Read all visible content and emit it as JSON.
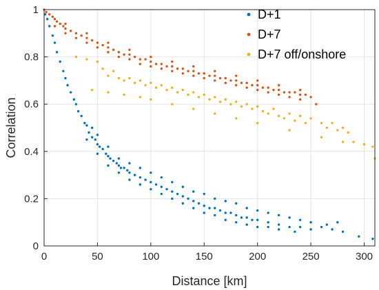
{
  "chart_data": {
    "type": "scatter",
    "title": "",
    "xlabel": "Distance [km]",
    "ylabel": "Correlation",
    "xlim": [
      0,
      310
    ],
    "ylim": [
      0,
      1
    ],
    "xticks": [
      0,
      50,
      100,
      150,
      200,
      250,
      300
    ],
    "xtick_labels": [
      "0",
      "50",
      "100",
      "150",
      "200",
      "250",
      "300"
    ],
    "yticks": [
      0,
      0.2,
      0.4,
      0.6,
      0.8,
      1
    ],
    "ytick_labels": [
      "0",
      "0.2",
      "0.4",
      "0.6",
      "0.8",
      "1"
    ],
    "grid": true,
    "legend": "top-right",
    "series": [
      {
        "name": "D+1",
        "color": "#0072bd",
        "points": [
          [
            1,
            0.98
          ],
          [
            3,
            0.96
          ],
          [
            5,
            0.93
          ],
          [
            8,
            0.89
          ],
          [
            10,
            0.86
          ],
          [
            12,
            0.82
          ],
          [
            15,
            0.78
          ],
          [
            18,
            0.74
          ],
          [
            20,
            0.71
          ],
          [
            22,
            0.68
          ],
          [
            25,
            0.65
          ],
          [
            28,
            0.62
          ],
          [
            30,
            0.6
          ],
          [
            32,
            0.57
          ],
          [
            35,
            0.55
          ],
          [
            38,
            0.52
          ],
          [
            40,
            0.51
          ],
          [
            42,
            0.48
          ],
          [
            45,
            0.46
          ],
          [
            48,
            0.45
          ],
          [
            50,
            0.43
          ],
          [
            52,
            0.42
          ],
          [
            55,
            0.41
          ],
          [
            58,
            0.39
          ],
          [
            60,
            0.38
          ],
          [
            62,
            0.37
          ],
          [
            65,
            0.36
          ],
          [
            68,
            0.35
          ],
          [
            70,
            0.34
          ],
          [
            72,
            0.33
          ],
          [
            75,
            0.33
          ],
          [
            78,
            0.32
          ],
          [
            80,
            0.31
          ],
          [
            85,
            0.3
          ],
          [
            90,
            0.29
          ],
          [
            95,
            0.28
          ],
          [
            100,
            0.27
          ],
          [
            105,
            0.26
          ],
          [
            110,
            0.25
          ],
          [
            115,
            0.24
          ],
          [
            120,
            0.23
          ],
          [
            125,
            0.22
          ],
          [
            130,
            0.21
          ],
          [
            135,
            0.2
          ],
          [
            140,
            0.19
          ],
          [
            145,
            0.18
          ],
          [
            150,
            0.17
          ],
          [
            155,
            0.16
          ],
          [
            160,
            0.16
          ],
          [
            165,
            0.15
          ],
          [
            170,
            0.14
          ],
          [
            175,
            0.14
          ],
          [
            180,
            0.13
          ],
          [
            185,
            0.12
          ],
          [
            190,
            0.12
          ],
          [
            195,
            0.11
          ],
          [
            200,
            0.11
          ],
          [
            210,
            0.1
          ],
          [
            220,
            0.09
          ],
          [
            230,
            0.08
          ],
          [
            240,
            0.08
          ],
          [
            250,
            0.07
          ],
          [
            260,
            0.08
          ],
          [
            270,
            0.07
          ],
          [
            280,
            0.06
          ],
          [
            295,
            0.04
          ],
          [
            308,
            0.03
          ],
          [
            45,
            0.5
          ],
          [
            50,
            0.47
          ],
          [
            60,
            0.42
          ],
          [
            70,
            0.37
          ],
          [
            80,
            0.35
          ],
          [
            90,
            0.33
          ],
          [
            100,
            0.31
          ],
          [
            110,
            0.29
          ],
          [
            120,
            0.27
          ],
          [
            130,
            0.25
          ],
          [
            140,
            0.23
          ],
          [
            150,
            0.22
          ],
          [
            160,
            0.2
          ],
          [
            170,
            0.19
          ],
          [
            180,
            0.18
          ],
          [
            190,
            0.16
          ],
          [
            200,
            0.15
          ],
          [
            210,
            0.14
          ],
          [
            220,
            0.13
          ],
          [
            230,
            0.12
          ],
          [
            240,
            0.11
          ],
          [
            250,
            0.1
          ],
          [
            265,
            0.09
          ],
          [
            275,
            0.1
          ],
          [
            40,
            0.45
          ],
          [
            50,
            0.39
          ],
          [
            60,
            0.34
          ],
          [
            70,
            0.31
          ],
          [
            80,
            0.28
          ],
          [
            90,
            0.26
          ],
          [
            100,
            0.24
          ],
          [
            110,
            0.22
          ],
          [
            120,
            0.2
          ],
          [
            130,
            0.18
          ],
          [
            140,
            0.16
          ],
          [
            150,
            0.14
          ],
          [
            160,
            0.13
          ],
          [
            170,
            0.11
          ],
          [
            180,
            0.1
          ],
          [
            190,
            0.09
          ],
          [
            200,
            0.08
          ],
          [
            210,
            0.08
          ],
          [
            220,
            0.07
          ],
          [
            235,
            0.06
          ]
        ]
      },
      {
        "name": "D+7",
        "color": "#d95319",
        "points": [
          [
            0,
            1
          ],
          [
            2,
            0.99
          ],
          [
            5,
            0.98
          ],
          [
            8,
            0.97
          ],
          [
            10,
            0.96
          ],
          [
            12,
            0.95
          ],
          [
            15,
            0.94
          ],
          [
            18,
            0.93
          ],
          [
            20,
            0.92
          ],
          [
            25,
            0.91
          ],
          [
            30,
            0.9
          ],
          [
            35,
            0.89
          ],
          [
            40,
            0.88
          ],
          [
            45,
            0.87
          ],
          [
            50,
            0.86
          ],
          [
            55,
            0.85
          ],
          [
            60,
            0.84
          ],
          [
            65,
            0.83
          ],
          [
            70,
            0.82
          ],
          [
            75,
            0.81
          ],
          [
            80,
            0.81
          ],
          [
            85,
            0.8
          ],
          [
            90,
            0.79
          ],
          [
            95,
            0.79
          ],
          [
            100,
            0.78
          ],
          [
            105,
            0.77
          ],
          [
            110,
            0.77
          ],
          [
            115,
            0.76
          ],
          [
            120,
            0.76
          ],
          [
            125,
            0.75
          ],
          [
            130,
            0.75
          ],
          [
            135,
            0.74
          ],
          [
            140,
            0.74
          ],
          [
            145,
            0.73
          ],
          [
            150,
            0.73
          ],
          [
            155,
            0.72
          ],
          [
            160,
            0.72
          ],
          [
            165,
            0.71
          ],
          [
            170,
            0.71
          ],
          [
            175,
            0.7
          ],
          [
            180,
            0.7
          ],
          [
            185,
            0.69
          ],
          [
            190,
            0.69
          ],
          [
            195,
            0.68
          ],
          [
            200,
            0.68
          ],
          [
            205,
            0.67
          ],
          [
            210,
            0.67
          ],
          [
            215,
            0.66
          ],
          [
            220,
            0.66
          ],
          [
            225,
            0.65
          ],
          [
            230,
            0.65
          ],
          [
            235,
            0.65
          ],
          [
            240,
            0.64
          ],
          [
            245,
            0.64
          ],
          [
            250,
            0.63
          ],
          [
            255,
            0.6
          ],
          [
            10,
            0.93
          ],
          [
            20,
            0.9
          ],
          [
            30,
            0.88
          ],
          [
            40,
            0.86
          ],
          [
            50,
            0.84
          ],
          [
            60,
            0.82
          ],
          [
            70,
            0.8
          ],
          [
            80,
            0.79
          ],
          [
            90,
            0.77
          ],
          [
            100,
            0.76
          ],
          [
            110,
            0.75
          ],
          [
            120,
            0.74
          ],
          [
            130,
            0.73
          ],
          [
            140,
            0.72
          ],
          [
            150,
            0.71
          ],
          [
            160,
            0.7
          ],
          [
            170,
            0.69
          ],
          [
            180,
            0.68
          ],
          [
            190,
            0.67
          ],
          [
            200,
            0.66
          ],
          [
            210,
            0.65
          ],
          [
            220,
            0.64
          ],
          [
            230,
            0.63
          ],
          [
            240,
            0.62
          ],
          [
            20,
            0.94
          ],
          [
            40,
            0.9
          ],
          [
            60,
            0.86
          ],
          [
            80,
            0.83
          ],
          [
            100,
            0.8
          ],
          [
            120,
            0.78
          ],
          [
            140,
            0.76
          ],
          [
            160,
            0.74
          ],
          [
            180,
            0.72
          ],
          [
            200,
            0.7
          ],
          [
            220,
            0.68
          ],
          [
            240,
            0.66
          ]
        ]
      },
      {
        "name": "D+7 off/onshore",
        "color": "#edb120",
        "points": [
          [
            30,
            0.8
          ],
          [
            40,
            0.79
          ],
          [
            50,
            0.78
          ],
          [
            55,
            0.75
          ],
          [
            60,
            0.72
          ],
          [
            65,
            0.74
          ],
          [
            70,
            0.71
          ],
          [
            75,
            0.7
          ],
          [
            80,
            0.71
          ],
          [
            85,
            0.69
          ],
          [
            90,
            0.7
          ],
          [
            95,
            0.68
          ],
          [
            100,
            0.69
          ],
          [
            105,
            0.67
          ],
          [
            110,
            0.68
          ],
          [
            115,
            0.66
          ],
          [
            120,
            0.67
          ],
          [
            125,
            0.65
          ],
          [
            130,
            0.66
          ],
          [
            135,
            0.64
          ],
          [
            140,
            0.65
          ],
          [
            145,
            0.63
          ],
          [
            150,
            0.64
          ],
          [
            155,
            0.62
          ],
          [
            160,
            0.63
          ],
          [
            165,
            0.61
          ],
          [
            170,
            0.62
          ],
          [
            175,
            0.6
          ],
          [
            180,
            0.61
          ],
          [
            185,
            0.59
          ],
          [
            190,
            0.6
          ],
          [
            195,
            0.58
          ],
          [
            200,
            0.59
          ],
          [
            205,
            0.57
          ],
          [
            210,
            0.56
          ],
          [
            215,
            0.58
          ],
          [
            220,
            0.55
          ],
          [
            225,
            0.54
          ],
          [
            230,
            0.56
          ],
          [
            235,
            0.53
          ],
          [
            240,
            0.55
          ],
          [
            245,
            0.52
          ],
          [
            250,
            0.54
          ],
          [
            260,
            0.52
          ],
          [
            265,
            0.5
          ],
          [
            270,
            0.52
          ],
          [
            275,
            0.49
          ],
          [
            280,
            0.5
          ],
          [
            285,
            0.48
          ],
          [
            290,
            0.44
          ],
          [
            300,
            0.43
          ],
          [
            308,
            0.42
          ],
          [
            310,
            0.37
          ],
          [
            45,
            0.66
          ],
          [
            60,
            0.65
          ],
          [
            75,
            0.64
          ],
          [
            90,
            0.63
          ],
          [
            100,
            0.62
          ],
          [
            120,
            0.6
          ],
          [
            140,
            0.58
          ],
          [
            160,
            0.56
          ],
          [
            180,
            0.54
          ],
          [
            200,
            0.52
          ],
          [
            230,
            0.49
          ],
          [
            260,
            0.46
          ],
          [
            280,
            0.44
          ]
        ]
      }
    ]
  }
}
